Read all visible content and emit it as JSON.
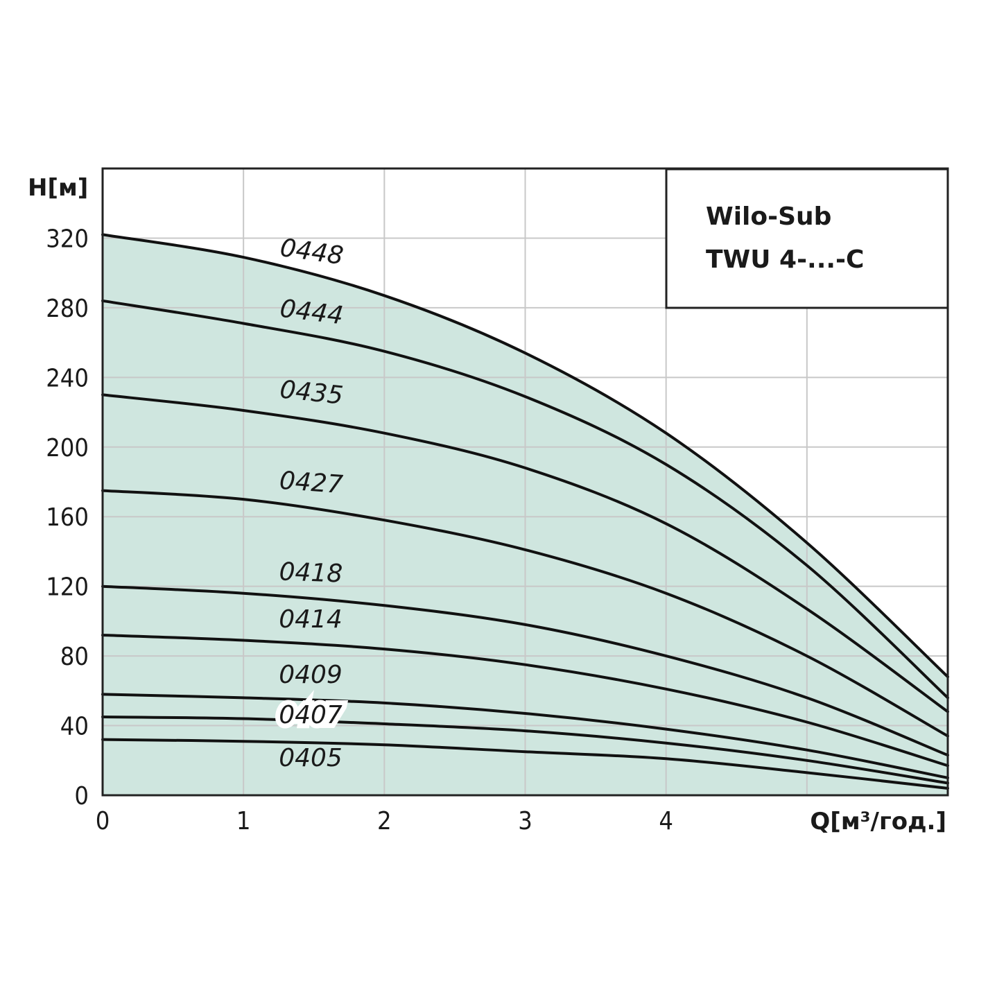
{
  "chart_data": {
    "type": "line",
    "title": "",
    "legend": [
      "Wilo-Sub",
      "TWU 4-...-C"
    ],
    "legend_position": "top-right",
    "xlabel": "Q[м³/год.]",
    "ylabel": "H[м]",
    "xlim": [
      0,
      6
    ],
    "ylim": [
      0,
      360
    ],
    "x_ticks": [
      "0",
      "1",
      "2",
      "3",
      "4"
    ],
    "y_ticks": [
      "0",
      "40",
      "80",
      "120",
      "160",
      "200",
      "240",
      "280",
      "320"
    ],
    "grid": true,
    "fill_color": "#cfe6df",
    "line_color": "#111111",
    "series": [
      {
        "name": "0448",
        "x": [
          0,
          1,
          2,
          3,
          4,
          5,
          6
        ],
        "y": [
          322,
          309,
          287,
          254,
          208,
          145,
          68
        ]
      },
      {
        "name": "0444",
        "x": [
          0,
          1,
          2,
          3,
          4,
          5,
          6
        ],
        "y": [
          284,
          271,
          255,
          229,
          190,
          132,
          56
        ]
      },
      {
        "name": "0435",
        "x": [
          0,
          1,
          2,
          3,
          4,
          5,
          6
        ],
        "y": [
          230,
          221,
          208,
          188,
          156,
          107,
          48
        ]
      },
      {
        "name": "0427",
        "x": [
          0,
          1,
          2,
          3,
          4,
          5,
          6
        ],
        "y": [
          175,
          170,
          158,
          141,
          116,
          80,
          34
        ]
      },
      {
        "name": "0418",
        "x": [
          0,
          1,
          2,
          3,
          4,
          5,
          6
        ],
        "y": [
          120,
          116,
          109,
          98,
          80,
          56,
          23
        ]
      },
      {
        "name": "0414",
        "x": [
          0,
          1,
          2,
          3,
          4,
          5,
          6
        ],
        "y": [
          92,
          89,
          84,
          75,
          61,
          42,
          17
        ]
      },
      {
        "name": "0409",
        "x": [
          0,
          1,
          2,
          3,
          4,
          5,
          6
        ],
        "y": [
          58,
          56,
          53,
          47,
          38,
          26,
          10
        ]
      },
      {
        "name": "0407",
        "x": [
          0,
          1,
          2,
          3,
          4,
          5,
          6
        ],
        "y": [
          45,
          44,
          41,
          37,
          30,
          20,
          7
        ]
      },
      {
        "name": "0405",
        "x": [
          0,
          1,
          2,
          3,
          4,
          5,
          6
        ],
        "y": [
          32,
          31,
          29,
          25,
          21,
          13,
          4
        ]
      }
    ]
  }
}
